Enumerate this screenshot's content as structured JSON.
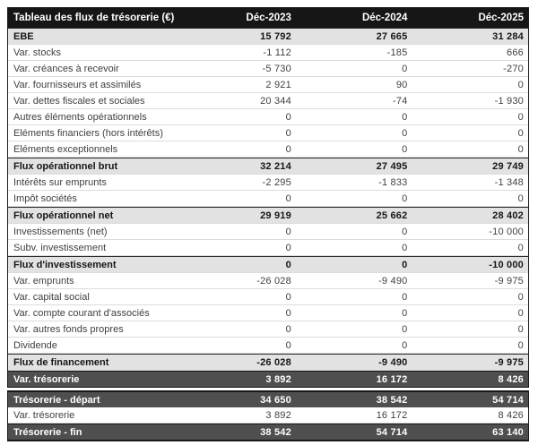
{
  "chart_data": {
    "type": "table",
    "title": "Tableau des flux de trésorerie (€)",
    "columns": [
      "Déc-2023",
      "Déc-2024",
      "Déc-2025"
    ],
    "sections": [
      {
        "name": "flux",
        "rows": [
          {
            "label": "EBE",
            "values": [
              "15 792",
              "27 665",
              "31 284"
            ],
            "style": "subtotal"
          },
          {
            "label": "Var. stocks",
            "values": [
              "-1 112",
              "-185",
              "666"
            ],
            "style": "normal"
          },
          {
            "label": "Var. créances à recevoir",
            "values": [
              "-5 730",
              "0",
              "-270"
            ],
            "style": "normal"
          },
          {
            "label": "Var. fournisseurs et assimilés",
            "values": [
              "2 921",
              "90",
              "0"
            ],
            "style": "normal"
          },
          {
            "label": "Var. dettes fiscales et sociales",
            "values": [
              "20 344",
              "-74",
              "-1 930"
            ],
            "style": "normal"
          },
          {
            "label": "Autres éléments opérationnels",
            "values": [
              "0",
              "0",
              "0"
            ],
            "style": "normal"
          },
          {
            "label": "Eléments financiers (hors intérêts)",
            "values": [
              "0",
              "0",
              "0"
            ],
            "style": "normal"
          },
          {
            "label": "Eléments exceptionnels",
            "values": [
              "0",
              "0",
              "0"
            ],
            "style": "normal"
          },
          {
            "label": "Flux opérationnel brut",
            "values": [
              "32 214",
              "27 495",
              "29 749"
            ],
            "style": "subtotal"
          },
          {
            "label": "Intérêts sur emprunts",
            "values": [
              "-2 295",
              "-1 833",
              "-1 348"
            ],
            "style": "normal"
          },
          {
            "label": "Impôt sociétés",
            "values": [
              "0",
              "0",
              "0"
            ],
            "style": "normal"
          },
          {
            "label": "Flux opérationnel net",
            "values": [
              "29 919",
              "25 662",
              "28 402"
            ],
            "style": "subtotal"
          },
          {
            "label": "Investissements (net)",
            "values": [
              "0",
              "0",
              "-10 000"
            ],
            "style": "normal"
          },
          {
            "label": "Subv. investissement",
            "values": [
              "0",
              "0",
              "0"
            ],
            "style": "normal"
          },
          {
            "label": "Flux d'investissement",
            "values": [
              "0",
              "0",
              "-10 000"
            ],
            "style": "subtotal"
          },
          {
            "label": "Var. emprunts",
            "values": [
              "-26 028",
              "-9 490",
              "-9 975"
            ],
            "style": "normal"
          },
          {
            "label": "Var. capital social",
            "values": [
              "0",
              "0",
              "0"
            ],
            "style": "normal"
          },
          {
            "label": "Var. compte courant d'associés",
            "values": [
              "0",
              "0",
              "0"
            ],
            "style": "normal"
          },
          {
            "label": "Var. autres fonds propres",
            "values": [
              "0",
              "0",
              "0"
            ],
            "style": "normal"
          },
          {
            "label": "Dividende",
            "values": [
              "0",
              "0",
              "0"
            ],
            "style": "normal"
          },
          {
            "label": "Flux de financement",
            "values": [
              "-26 028",
              "-9 490",
              "-9 975"
            ],
            "style": "subtotal"
          },
          {
            "label": "Var. trésorerie",
            "values": [
              "3 892",
              "16 172",
              "8 426"
            ],
            "style": "dark"
          }
        ]
      },
      {
        "name": "tresorerie",
        "rows": [
          {
            "label": "Trésorerie - départ",
            "values": [
              "34 650",
              "38 542",
              "54 714"
            ],
            "style": "dark"
          },
          {
            "label": "Var. trésorerie",
            "values": [
              "3 892",
              "16 172",
              "8 426"
            ],
            "style": "normal"
          },
          {
            "label": "Trésorerie - fin",
            "values": [
              "38 542",
              "54 714",
              "63 140"
            ],
            "style": "dark"
          }
        ]
      }
    ]
  },
  "colors": {
    "header_bg": "#161616",
    "header_text": "#ffffff",
    "subtotal_bg": "#e2e2e2",
    "dark_row_bg": "#4f4f4f",
    "dark_row_text": "#ffffff",
    "body_text": "#3f3f3f",
    "row_divider": "#dcdcdc",
    "table_border": "#1a1a1a"
  }
}
